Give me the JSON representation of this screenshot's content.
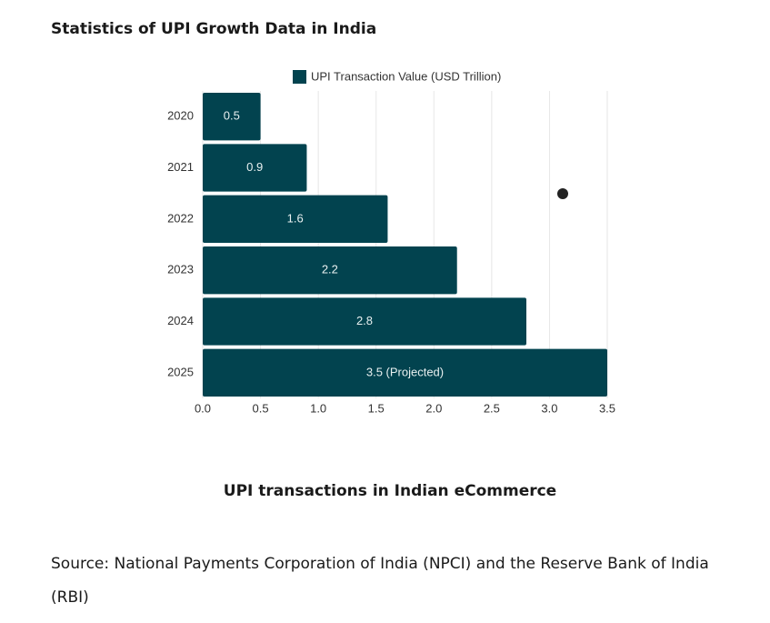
{
  "heading": "Statistics of UPI Growth Data in India",
  "caption": "UPI transactions in Indian eCommerce",
  "source": "Source: National Payments Corporation of India (NPCI) and the Reserve Bank of India (RBI)",
  "chart_data": {
    "type": "hbar",
    "categories": [
      "2020",
      "2021",
      "2022",
      "2023",
      "2024",
      "2025"
    ],
    "series": [
      {
        "name": "UPI Transaction Value (USD Trillion)",
        "color": "#02434f",
        "values": [
          0.5,
          0.9,
          1.6,
          2.2,
          2.8,
          3.5
        ],
        "value_labels": [
          "0.5",
          "0.9",
          "1.6",
          "2.2",
          "2.8",
          "3.5 (Projected)"
        ]
      }
    ],
    "xlim": [
      0,
      3.5
    ],
    "xticks": [
      {
        "value": 0,
        "label": "0.0"
      },
      0.5,
      {
        "value": 1,
        "label": "1.0"
      },
      1.5,
      {
        "value": 2,
        "label": "2.0"
      },
      2.5,
      {
        "value": 3,
        "label": "3.0"
      },
      3.5
    ],
    "grid": true,
    "legend": "top"
  }
}
